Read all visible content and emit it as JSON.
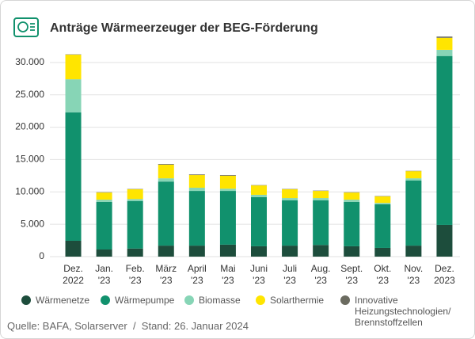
{
  "chart_data": {
    "type": "stacked_bar",
    "title": "Anträge Wärmeerzeuger der BEG-Förderung",
    "source": "Quelle: BAFA, Solarserver  /  Stand: 26. Januar 2024",
    "categories": [
      "Dez.\n2022",
      "Jan.\n'23",
      "Feb.\n'23",
      "März\n'23",
      "April\n'23",
      "Mai\n'23",
      "Juni\n'23",
      "Juli\n'23",
      "Aug.\n'23",
      "Sept.\n'23",
      "Okt.\n'23",
      "Nov.\n'23",
      "Dez.\n2023"
    ],
    "series": [
      {
        "name": "Wärmenetze",
        "color": "#1d4d3c",
        "values": [
          2450,
          1100,
          1250,
          1700,
          1700,
          1850,
          1600,
          1700,
          1800,
          1600,
          1350,
          1700,
          4900
        ]
      },
      {
        "name": "Wärmepumpe",
        "color": "#11916d",
        "values": [
          19850,
          7350,
          7350,
          9900,
          8450,
          8300,
          7600,
          7000,
          6900,
          6850,
          6750,
          10050,
          26100
        ]
      },
      {
        "name": "Biomasse",
        "color": "#87d5b6",
        "values": [
          5100,
          350,
          300,
          500,
          500,
          350,
          350,
          350,
          350,
          350,
          200,
          350,
          950
        ]
      },
      {
        "name": "Solarthermie",
        "color": "#ffe500",
        "values": [
          3800,
          1100,
          1500,
          2100,
          1950,
          2000,
          1450,
          1350,
          1100,
          1100,
          1000,
          1100,
          1850
        ]
      },
      {
        "name": "Innovative\nHeizungstechnologien/\nBrennstoffzellen",
        "color": "#6b6b60",
        "values": [
          50,
          50,
          50,
          100,
          100,
          100,
          50,
          50,
          50,
          50,
          50,
          50,
          200
        ]
      }
    ],
    "ylim": [
      0,
      35000
    ],
    "yticks": [
      0,
      {
        "value": 5000,
        "label": "5.000"
      },
      {
        "value": 10000,
        "label": "10.000"
      },
      {
        "value": 15000,
        "label": "15.000"
      },
      {
        "value": 20000,
        "label": "20.000"
      },
      {
        "value": 25000,
        "label": "25.000"
      },
      {
        "value": 30000,
        "label": "30.000"
      }
    ],
    "grid": true
  }
}
